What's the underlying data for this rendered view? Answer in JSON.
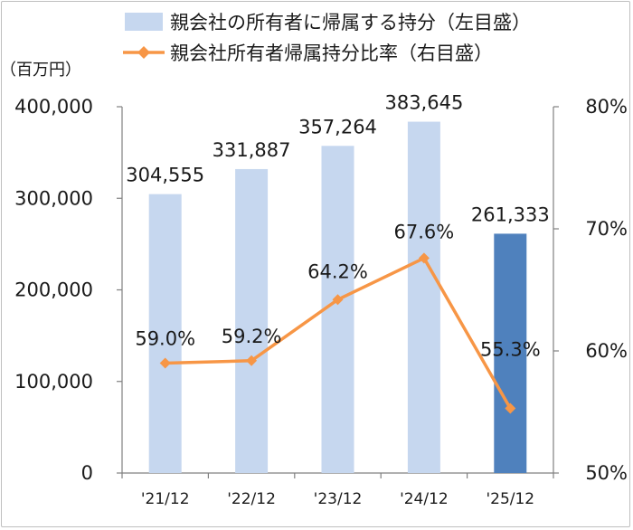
{
  "chart_data": {
    "type": "bar+line",
    "categories": [
      "'21/12",
      "'22/12",
      "'23/12",
      "'24/12",
      "'25/12"
    ],
    "series": [
      {
        "name": "親会社の所有者に帰属する持分（左目盛）",
        "type": "bar",
        "axis": "left",
        "values": [
          304555,
          331887,
          357264,
          383645,
          261333
        ],
        "labels": [
          "304,555",
          "331,887",
          "357,264",
          "383,645",
          "261,333"
        ],
        "color": "#c6d7ef",
        "highlight_color": "#4f81bd",
        "highlight_index": 4
      },
      {
        "name": "親会社所有者帰属持分比率（右目盛）",
        "type": "line",
        "axis": "right",
        "values": [
          59.0,
          59.2,
          64.2,
          67.6,
          55.3
        ],
        "labels": [
          "59.0%",
          "59.2%",
          "64.2%",
          "67.6%",
          "55.3%"
        ],
        "color": "#f79646"
      }
    ],
    "y_left": {
      "unit": "（百万円）",
      "ylim": [
        0,
        400000
      ],
      "ticks": [
        0,
        100000,
        200000,
        300000,
        400000
      ],
      "tick_labels": [
        "0",
        "100,000",
        "200,000",
        "300,000",
        "400,000"
      ]
    },
    "y_right": {
      "ylim": [
        50,
        80
      ],
      "ticks": [
        50,
        60,
        70,
        80
      ],
      "tick_labels": [
        "50%",
        "60%",
        "70%",
        "80%"
      ]
    },
    "legend_position": "top",
    "grid": false
  },
  "legend": {
    "bar_label": "親会社の所有者に帰属する持分（左目盛）",
    "line_label": "親会社所有者帰属持分比率（右目盛）"
  },
  "colors": {
    "axis": "#808080",
    "text": "#1a1a1a"
  }
}
